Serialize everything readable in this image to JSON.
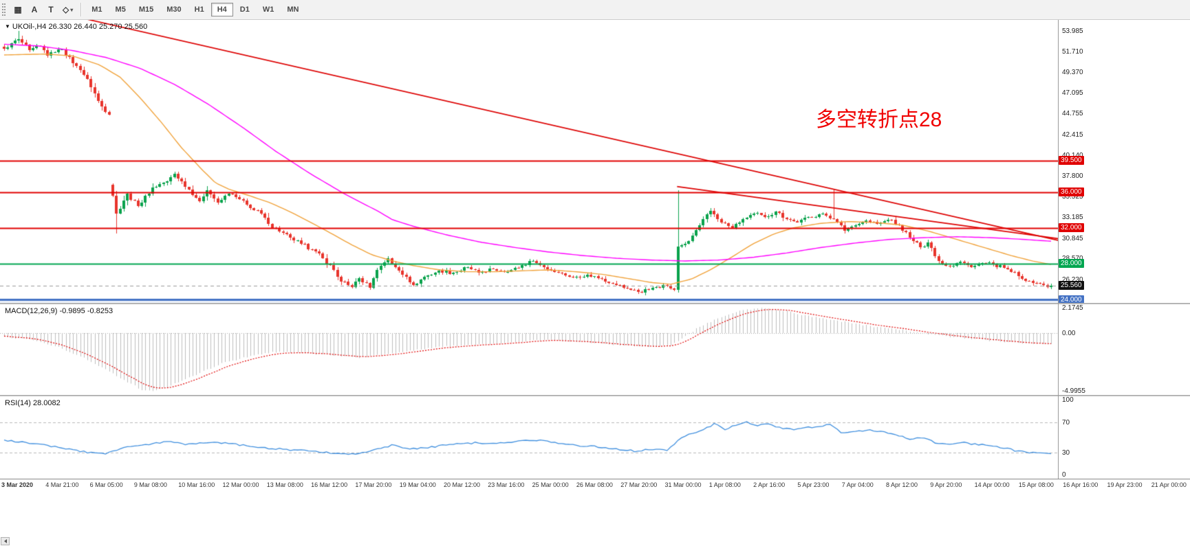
{
  "toolbar": {
    "tools": [
      {
        "id": "crosshair",
        "glyph": "▦"
      },
      {
        "id": "cursor",
        "glyph": "A"
      },
      {
        "id": "text-label",
        "glyph": "T"
      },
      {
        "id": "shapes",
        "glyph": "◇",
        "has_dropdown": true
      }
    ],
    "timeframes": [
      {
        "label": "M1"
      },
      {
        "label": "M5"
      },
      {
        "label": "M15"
      },
      {
        "label": "M30"
      },
      {
        "label": "H1"
      },
      {
        "label": "H4",
        "active": true
      },
      {
        "label": "D1"
      },
      {
        "label": "W1"
      },
      {
        "label": "MN"
      }
    ]
  },
  "price_panel": {
    "symbol_info": "UKOil-,H4  26.330 26.440 25.270 25.560",
    "annotation": {
      "text": "多空转折点28",
      "color": "#f00000"
    }
  },
  "macd_panel": {
    "label": "MACD(12,26,9) -0.9895 -0.8253",
    "axis_labels": [
      {
        "text": "2.1745",
        "value": 2.1745
      },
      {
        "text": "0.00",
        "value": 0
      },
      {
        "text": "-4.9955",
        "value": -4.9955
      }
    ]
  },
  "rsi_panel": {
    "label": "RSI(14) 28.0082",
    "axis_labels": [
      {
        "text": "100",
        "value": 100
      },
      {
        "text": "70",
        "value": 70
      },
      {
        "text": "30",
        "value": 30
      },
      {
        "text": "0",
        "value": 0
      }
    ]
  },
  "chart_data": {
    "type": "candlestick",
    "symbol": "UKOil-",
    "timeframe": "H4",
    "ohlc": {
      "open": 26.33,
      "high": 26.44,
      "low": 25.27,
      "close": 25.56
    },
    "price_axis_ticks": [
      "53.985",
      "51.710",
      "49.370",
      "47.095",
      "44.755",
      "42.415",
      "40.140",
      "37.800",
      "35.525",
      "33.185",
      "30.845",
      "28.570",
      "26.230"
    ],
    "price_range": {
      "min": 23.62,
      "max": 55.21
    },
    "n_candles": 290,
    "up_color": "#0aa24c",
    "down_color": "#e8342c",
    "close_anchors": [
      [
        0,
        52.0
      ],
      [
        2,
        52.6
      ],
      [
        4,
        53.1
      ],
      [
        7,
        51.8
      ],
      [
        10,
        52.3
      ],
      [
        12,
        51.2
      ],
      [
        14,
        51.6
      ],
      [
        16,
        51.9
      ],
      [
        19,
        50.4
      ],
      [
        21,
        49.6
      ],
      [
        23,
        48.6
      ],
      [
        26,
        46.2
      ],
      [
        28,
        44.9
      ],
      [
        29,
        44.6
      ],
      [
        30,
        35.6
      ],
      [
        31,
        33.6
      ],
      [
        34,
        35.8
      ],
      [
        37,
        34.4
      ],
      [
        41,
        36.5
      ],
      [
        45,
        37.2
      ],
      [
        47,
        38.0
      ],
      [
        51,
        36.3
      ],
      [
        54,
        35.0
      ],
      [
        56,
        36.2
      ],
      [
        59,
        34.8
      ],
      [
        62,
        35.8
      ],
      [
        65,
        35.2
      ],
      [
        68,
        34.2
      ],
      [
        71,
        33.6
      ],
      [
        73,
        32.4
      ],
      [
        76,
        31.6
      ],
      [
        79,
        30.9
      ],
      [
        82,
        30.2
      ],
      [
        85,
        29.6
      ],
      [
        88,
        28.6
      ],
      [
        91,
        27.3
      ],
      [
        93,
        26.0
      ],
      [
        96,
        25.4
      ],
      [
        98,
        26.4
      ],
      [
        101,
        25.3
      ],
      [
        103,
        27.3
      ],
      [
        106,
        28.6
      ],
      [
        108,
        27.6
      ],
      [
        111,
        26.5
      ],
      [
        113,
        25.6
      ],
      [
        116,
        26.5
      ],
      [
        120,
        27.2
      ],
      [
        124,
        27.0
      ],
      [
        128,
        27.6
      ],
      [
        131,
        27.0
      ],
      [
        135,
        27.4
      ],
      [
        139,
        27.1
      ],
      [
        143,
        27.8
      ],
      [
        146,
        28.3
      ],
      [
        149,
        27.6
      ],
      [
        153,
        27.0
      ],
      [
        157,
        26.5
      ],
      [
        161,
        26.8
      ],
      [
        165,
        26.3
      ],
      [
        168,
        25.8
      ],
      [
        172,
        25.2
      ],
      [
        176,
        24.8
      ],
      [
        179,
        25.3
      ],
      [
        182,
        25.6
      ],
      [
        185,
        25.1
      ],
      [
        186,
        29.9
      ],
      [
        189,
        30.5
      ],
      [
        192,
        32.3
      ],
      [
        195,
        33.9
      ],
      [
        198,
        32.6
      ],
      [
        201,
        32.0
      ],
      [
        204,
        33.0
      ],
      [
        207,
        33.6
      ],
      [
        210,
        33.2
      ],
      [
        213,
        33.8
      ],
      [
        216,
        33.0
      ],
      [
        219,
        32.6
      ],
      [
        222,
        33.2
      ],
      [
        226,
        33.6
      ],
      [
        229,
        33.0
      ],
      [
        232,
        31.7
      ],
      [
        235,
        32.3
      ],
      [
        238,
        32.8
      ],
      [
        241,
        32.4
      ],
      [
        244,
        32.9
      ],
      [
        247,
        32.3
      ],
      [
        250,
        30.9
      ],
      [
        253,
        29.8
      ],
      [
        255,
        30.4
      ],
      [
        258,
        28.3
      ],
      [
        261,
        27.7
      ],
      [
        264,
        28.2
      ],
      [
        267,
        27.6
      ],
      [
        270,
        28.1
      ],
      [
        273,
        27.9
      ],
      [
        277,
        27.4
      ],
      [
        280,
        26.6
      ],
      [
        283,
        26.1
      ],
      [
        286,
        25.8
      ],
      [
        288,
        25.4
      ],
      [
        289,
        25.56
      ]
    ],
    "specials": [
      {
        "index": 4,
        "high": 53.95
      },
      {
        "index": 30,
        "open": 36.8
      },
      {
        "index": 31,
        "low": 31.4
      },
      {
        "index": 186,
        "open": 25.1,
        "high": 36.2,
        "low": 24.8,
        "close": 29.9
      },
      {
        "index": 229,
        "high": 36.3
      }
    ],
    "ma_fast": {
      "color": "#f0a23a",
      "anchors": [
        [
          0,
          51.3
        ],
        [
          0.039,
          51.4
        ],
        [
          0.065,
          51.2
        ],
        [
          0.091,
          50.2
        ],
        [
          0.111,
          48.8
        ],
        [
          0.13,
          46.5
        ],
        [
          0.15,
          43.8
        ],
        [
          0.169,
          41.0
        ],
        [
          0.189,
          38.5
        ],
        [
          0.202,
          37.0
        ],
        [
          0.215,
          36.3
        ],
        [
          0.234,
          35.6
        ],
        [
          0.254,
          34.8
        ],
        [
          0.273,
          33.8
        ],
        [
          0.293,
          32.6
        ],
        [
          0.312,
          31.4
        ],
        [
          0.332,
          30.1
        ],
        [
          0.351,
          29.0
        ],
        [
          0.371,
          28.3
        ],
        [
          0.39,
          27.8
        ],
        [
          0.416,
          27.3
        ],
        [
          0.442,
          27.1
        ],
        [
          0.468,
          27.1
        ],
        [
          0.494,
          27.2
        ],
        [
          0.52,
          27.3
        ],
        [
          0.546,
          27.1
        ],
        [
          0.572,
          26.8
        ],
        [
          0.598,
          26.3
        ],
        [
          0.618,
          25.9
        ],
        [
          0.637,
          25.7
        ],
        [
          0.657,
          26.3
        ],
        [
          0.676,
          27.4
        ],
        [
          0.696,
          28.8
        ],
        [
          0.715,
          30.2
        ],
        [
          0.735,
          31.3
        ],
        [
          0.754,
          32.0
        ],
        [
          0.78,
          32.5
        ],
        [
          0.806,
          32.7
        ],
        [
          0.832,
          32.6
        ],
        [
          0.858,
          32.3
        ],
        [
          0.884,
          31.6
        ],
        [
          0.91,
          30.7
        ],
        [
          0.936,
          29.8
        ],
        [
          0.962,
          28.9
        ],
        [
          0.982,
          28.3
        ],
        [
          1,
          27.9
        ]
      ]
    },
    "ma_slow": {
      "color": "#ff00ff",
      "anchors": [
        [
          0,
          52.5
        ],
        [
          0.033,
          52.3
        ],
        [
          0.065,
          51.8
        ],
        [
          0.098,
          51.0
        ],
        [
          0.13,
          49.8
        ],
        [
          0.163,
          48.0
        ],
        [
          0.195,
          45.8
        ],
        [
          0.228,
          43.2
        ],
        [
          0.26,
          40.5
        ],
        [
          0.293,
          38.0
        ],
        [
          0.325,
          35.8
        ],
        [
          0.358,
          33.8
        ],
        [
          0.371,
          32.9
        ],
        [
          0.39,
          32.2
        ],
        [
          0.423,
          31.2
        ],
        [
          0.455,
          30.4
        ],
        [
          0.488,
          29.8
        ],
        [
          0.52,
          29.3
        ],
        [
          0.553,
          28.9
        ],
        [
          0.585,
          28.6
        ],
        [
          0.618,
          28.4
        ],
        [
          0.65,
          28.3
        ],
        [
          0.683,
          28.4
        ],
        [
          0.715,
          28.7
        ],
        [
          0.748,
          29.2
        ],
        [
          0.78,
          29.8
        ],
        [
          0.813,
          30.3
        ],
        [
          0.845,
          30.7
        ],
        [
          0.878,
          30.9
        ],
        [
          0.91,
          31.0
        ],
        [
          0.943,
          30.9
        ],
        [
          0.975,
          30.7
        ],
        [
          1,
          30.5
        ]
      ]
    },
    "trendlines": [
      {
        "x1": 0,
        "p1": 57.5,
        "x2": 1,
        "p2": 30.6,
        "color": "#dd0000"
      },
      {
        "x1": 0.64,
        "p1": 36.6,
        "x2": 1,
        "p2": 30.8,
        "color": "#dd0000"
      }
    ],
    "levels": [
      {
        "price": 39.5,
        "label": "39.500",
        "color": "#e00000",
        "width": 2
      },
      {
        "price": 36.0,
        "label": "36.000",
        "color": "#e00000",
        "width": 2
      },
      {
        "price": 32.0,
        "label": "32.000",
        "color": "#e00000",
        "width": 2
      },
      {
        "price": 28.0,
        "label": "28.000",
        "color": "#00a650",
        "width": 2
      },
      {
        "price": 24.0,
        "label": "24.000",
        "color": "#4472c4",
        "width": 3
      }
    ],
    "current_price": {
      "label": "25.560",
      "value": 25.56,
      "badge_bg": "#111111"
    },
    "time_labels": [
      "3 Mar 2020",
      "4 Mar 21:00",
      "6 Mar 05:00",
      "9 Mar 08:00",
      "10 Mar 16:00",
      "12 Mar 00:00",
      "13 Mar 08:00",
      "16 Mar 12:00",
      "17 Mar 20:00",
      "19 Mar 04:00",
      "20 Mar 12:00",
      "23 Mar 16:00",
      "25 Mar 00:00",
      "26 Mar 08:00",
      "27 Mar 20:00",
      "31 Mar 00:00",
      "1 Apr 08:00",
      "2 Apr 16:00",
      "5 Apr 23:00",
      "7 Apr 04:00",
      "8 Apr 12:00",
      "9 Apr 20:00",
      "14 Apr 00:00",
      "15 Apr 08:00",
      "16 Apr 16:00",
      "19 Apr 23:00",
      "21 Apr 00:00"
    ],
    "macd": {
      "range": {
        "min": -4.9955,
        "max": 2.1745
      },
      "bar_color": "#bdbdbd",
      "signal_color": "#e00000",
      "anchors": [
        [
          0,
          -0.3
        ],
        [
          0.026,
          -0.6
        ],
        [
          0.052,
          -1.2
        ],
        [
          0.078,
          -2.2
        ],
        [
          0.104,
          -3.5
        ],
        [
          0.13,
          -4.8
        ],
        [
          0.14,
          -4.99
        ],
        [
          0.156,
          -4.6
        ],
        [
          0.182,
          -3.6
        ],
        [
          0.208,
          -2.6
        ],
        [
          0.234,
          -2.0
        ],
        [
          0.26,
          -1.6
        ],
        [
          0.286,
          -1.7
        ],
        [
          0.312,
          -1.9
        ],
        [
          0.338,
          -2.1
        ],
        [
          0.364,
          -1.8
        ],
        [
          0.39,
          -1.5
        ],
        [
          0.416,
          -1.2
        ],
        [
          0.442,
          -1.0
        ],
        [
          0.468,
          -0.9
        ],
        [
          0.494,
          -0.7
        ],
        [
          0.52,
          -0.6
        ],
        [
          0.546,
          -0.7
        ],
        [
          0.572,
          -0.9
        ],
        [
          0.598,
          -1.1
        ],
        [
          0.618,
          -1.2
        ],
        [
          0.637,
          -1.0
        ],
        [
          0.65,
          -0.3
        ],
        [
          0.663,
          0.5
        ],
        [
          0.683,
          1.3
        ],
        [
          0.702,
          1.9
        ],
        [
          0.722,
          2.15
        ],
        [
          0.741,
          2.0
        ],
        [
          0.761,
          1.6
        ],
        [
          0.78,
          1.3
        ],
        [
          0.8,
          1.0
        ],
        [
          0.819,
          0.7
        ],
        [
          0.839,
          0.45
        ],
        [
          0.858,
          0.25
        ],
        [
          0.878,
          0.0
        ],
        [
          0.897,
          -0.25
        ],
        [
          0.917,
          -0.45
        ],
        [
          0.936,
          -0.6
        ],
        [
          0.956,
          -0.75
        ],
        [
          0.975,
          -0.9
        ],
        [
          1,
          -0.99
        ]
      ]
    },
    "rsi": {
      "color": "#3e8ede",
      "levels": [
        70,
        30
      ],
      "anchors": [
        [
          0,
          46
        ],
        [
          0.02,
          44
        ],
        [
          0.039,
          40
        ],
        [
          0.059,
          36
        ],
        [
          0.078,
          31
        ],
        [
          0.098,
          29
        ],
        [
          0.117,
          38
        ],
        [
          0.137,
          41
        ],
        [
          0.156,
          45
        ],
        [
          0.176,
          41
        ],
        [
          0.195,
          44
        ],
        [
          0.215,
          42
        ],
        [
          0.234,
          39
        ],
        [
          0.254,
          36
        ],
        [
          0.273,
          34
        ],
        [
          0.293,
          33
        ],
        [
          0.312,
          30
        ],
        [
          0.332,
          28
        ],
        [
          0.351,
          33
        ],
        [
          0.371,
          40
        ],
        [
          0.39,
          35
        ],
        [
          0.41,
          38
        ],
        [
          0.429,
          41
        ],
        [
          0.449,
          43
        ],
        [
          0.468,
          42
        ],
        [
          0.488,
          45
        ],
        [
          0.507,
          47
        ],
        [
          0.527,
          43
        ],
        [
          0.546,
          40
        ],
        [
          0.566,
          38
        ],
        [
          0.585,
          35
        ],
        [
          0.605,
          32
        ],
        [
          0.618,
          35
        ],
        [
          0.634,
          33
        ],
        [
          0.644,
          48
        ],
        [
          0.657,
          55
        ],
        [
          0.67,
          62
        ],
        [
          0.679,
          68
        ],
        [
          0.689,
          60
        ],
        [
          0.699,
          66
        ],
        [
          0.709,
          71
        ],
        [
          0.718,
          65
        ],
        [
          0.728,
          68
        ],
        [
          0.741,
          63
        ],
        [
          0.754,
          60
        ],
        [
          0.767,
          63
        ],
        [
          0.78,
          65
        ],
        [
          0.79,
          67
        ],
        [
          0.8,
          56
        ],
        [
          0.813,
          58
        ],
        [
          0.826,
          60
        ],
        [
          0.839,
          58
        ],
        [
          0.852,
          54
        ],
        [
          0.865,
          48
        ],
        [
          0.878,
          50
        ],
        [
          0.891,
          42
        ],
        [
          0.904,
          40
        ],
        [
          0.917,
          43
        ],
        [
          0.93,
          41
        ],
        [
          0.943,
          40
        ],
        [
          0.956,
          36
        ],
        [
          0.969,
          32
        ],
        [
          0.982,
          30
        ],
        [
          1,
          28.0
        ]
      ]
    }
  }
}
